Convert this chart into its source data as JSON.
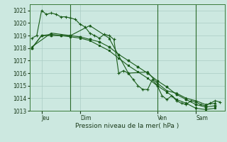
{
  "xlabel": "Pression niveau de la mer( hPa )",
  "bg_color": "#cce8e0",
  "grid_color": "#aaccc4",
  "line_color": "#1a5c1a",
  "vline_color": "#2a6a2a",
  "ylim": [
    1013,
    1021.5
  ],
  "yticks": [
    1013,
    1014,
    1015,
    1016,
    1017,
    1018,
    1019,
    1020,
    1021
  ],
  "xlim": [
    -0.5,
    40
  ],
  "day_labels": [
    "Jeu",
    "Dim",
    "Ven",
    "Sam"
  ],
  "day_positions": [
    2,
    10,
    26,
    34
  ],
  "vline_positions": [
    8,
    26,
    34
  ],
  "series": [
    {
      "x": [
        0,
        1,
        2,
        3,
        4,
        5,
        6,
        7,
        8,
        9,
        10,
        11,
        12,
        13,
        14,
        15,
        16,
        17,
        18,
        19,
        20,
        21,
        22,
        23,
        24,
        25,
        26,
        27,
        28,
        29,
        30,
        31,
        32,
        33,
        34,
        35,
        36,
        37,
        38,
        39
      ],
      "y": [
        1018.8,
        1019.0,
        1021.0,
        1020.7,
        1020.8,
        1020.7,
        1020.5,
        1020.5,
        1020.4,
        1020.3,
        1019.9,
        1019.7,
        1019.2,
        1019.0,
        1018.8,
        1019.1,
        1019.0,
        1018.7,
        1016.0,
        1016.2,
        1016.0,
        1015.5,
        1015.0,
        1014.7,
        1014.7,
        1015.5,
        1015.0,
        1014.2,
        1013.9,
        1014.2,
        1013.8,
        1013.6,
        1013.5,
        1013.8,
        1013.7,
        1013.5,
        1013.4,
        1013.6,
        1013.8,
        1013.7
      ],
      "marker": "+",
      "ms": 3.5
    },
    {
      "x": [
        0,
        2,
        4,
        6,
        8,
        10,
        12,
        14,
        16,
        18,
        20,
        22,
        24,
        26,
        28,
        30,
        32,
        34,
        36,
        38
      ],
      "y": [
        1018.0,
        1019.0,
        1019.0,
        1019.0,
        1019.0,
        1018.9,
        1018.7,
        1018.5,
        1018.1,
        1017.5,
        1017.0,
        1016.5,
        1016.0,
        1015.4,
        1014.9,
        1014.3,
        1013.9,
        1013.5,
        1013.3,
        1013.4
      ],
      "marker": "o",
      "ms": 2.0
    },
    {
      "x": [
        0,
        2,
        4,
        6,
        8,
        10,
        12,
        14,
        16,
        18,
        20,
        22,
        24,
        26,
        28,
        30,
        32,
        34,
        36,
        38
      ],
      "y": [
        1018.0,
        1019.0,
        1019.1,
        1019.0,
        1018.9,
        1018.8,
        1018.6,
        1018.2,
        1017.8,
        1017.2,
        1016.6,
        1016.1,
        1015.6,
        1015.0,
        1014.5,
        1013.9,
        1013.6,
        1013.2,
        1013.1,
        1013.2
      ],
      "marker": "s",
      "ms": 2.0
    },
    {
      "x": [
        0,
        4,
        8,
        12,
        16,
        20,
        24,
        26,
        28,
        30,
        32,
        34,
        36,
        38
      ],
      "y": [
        1018.1,
        1019.2,
        1019.0,
        1019.8,
        1018.8,
        1016.0,
        1016.1,
        1015.2,
        1014.6,
        1014.4,
        1014.0,
        1013.8,
        1013.5,
        1013.6
      ],
      "marker": "^",
      "ms": 2.0
    }
  ]
}
